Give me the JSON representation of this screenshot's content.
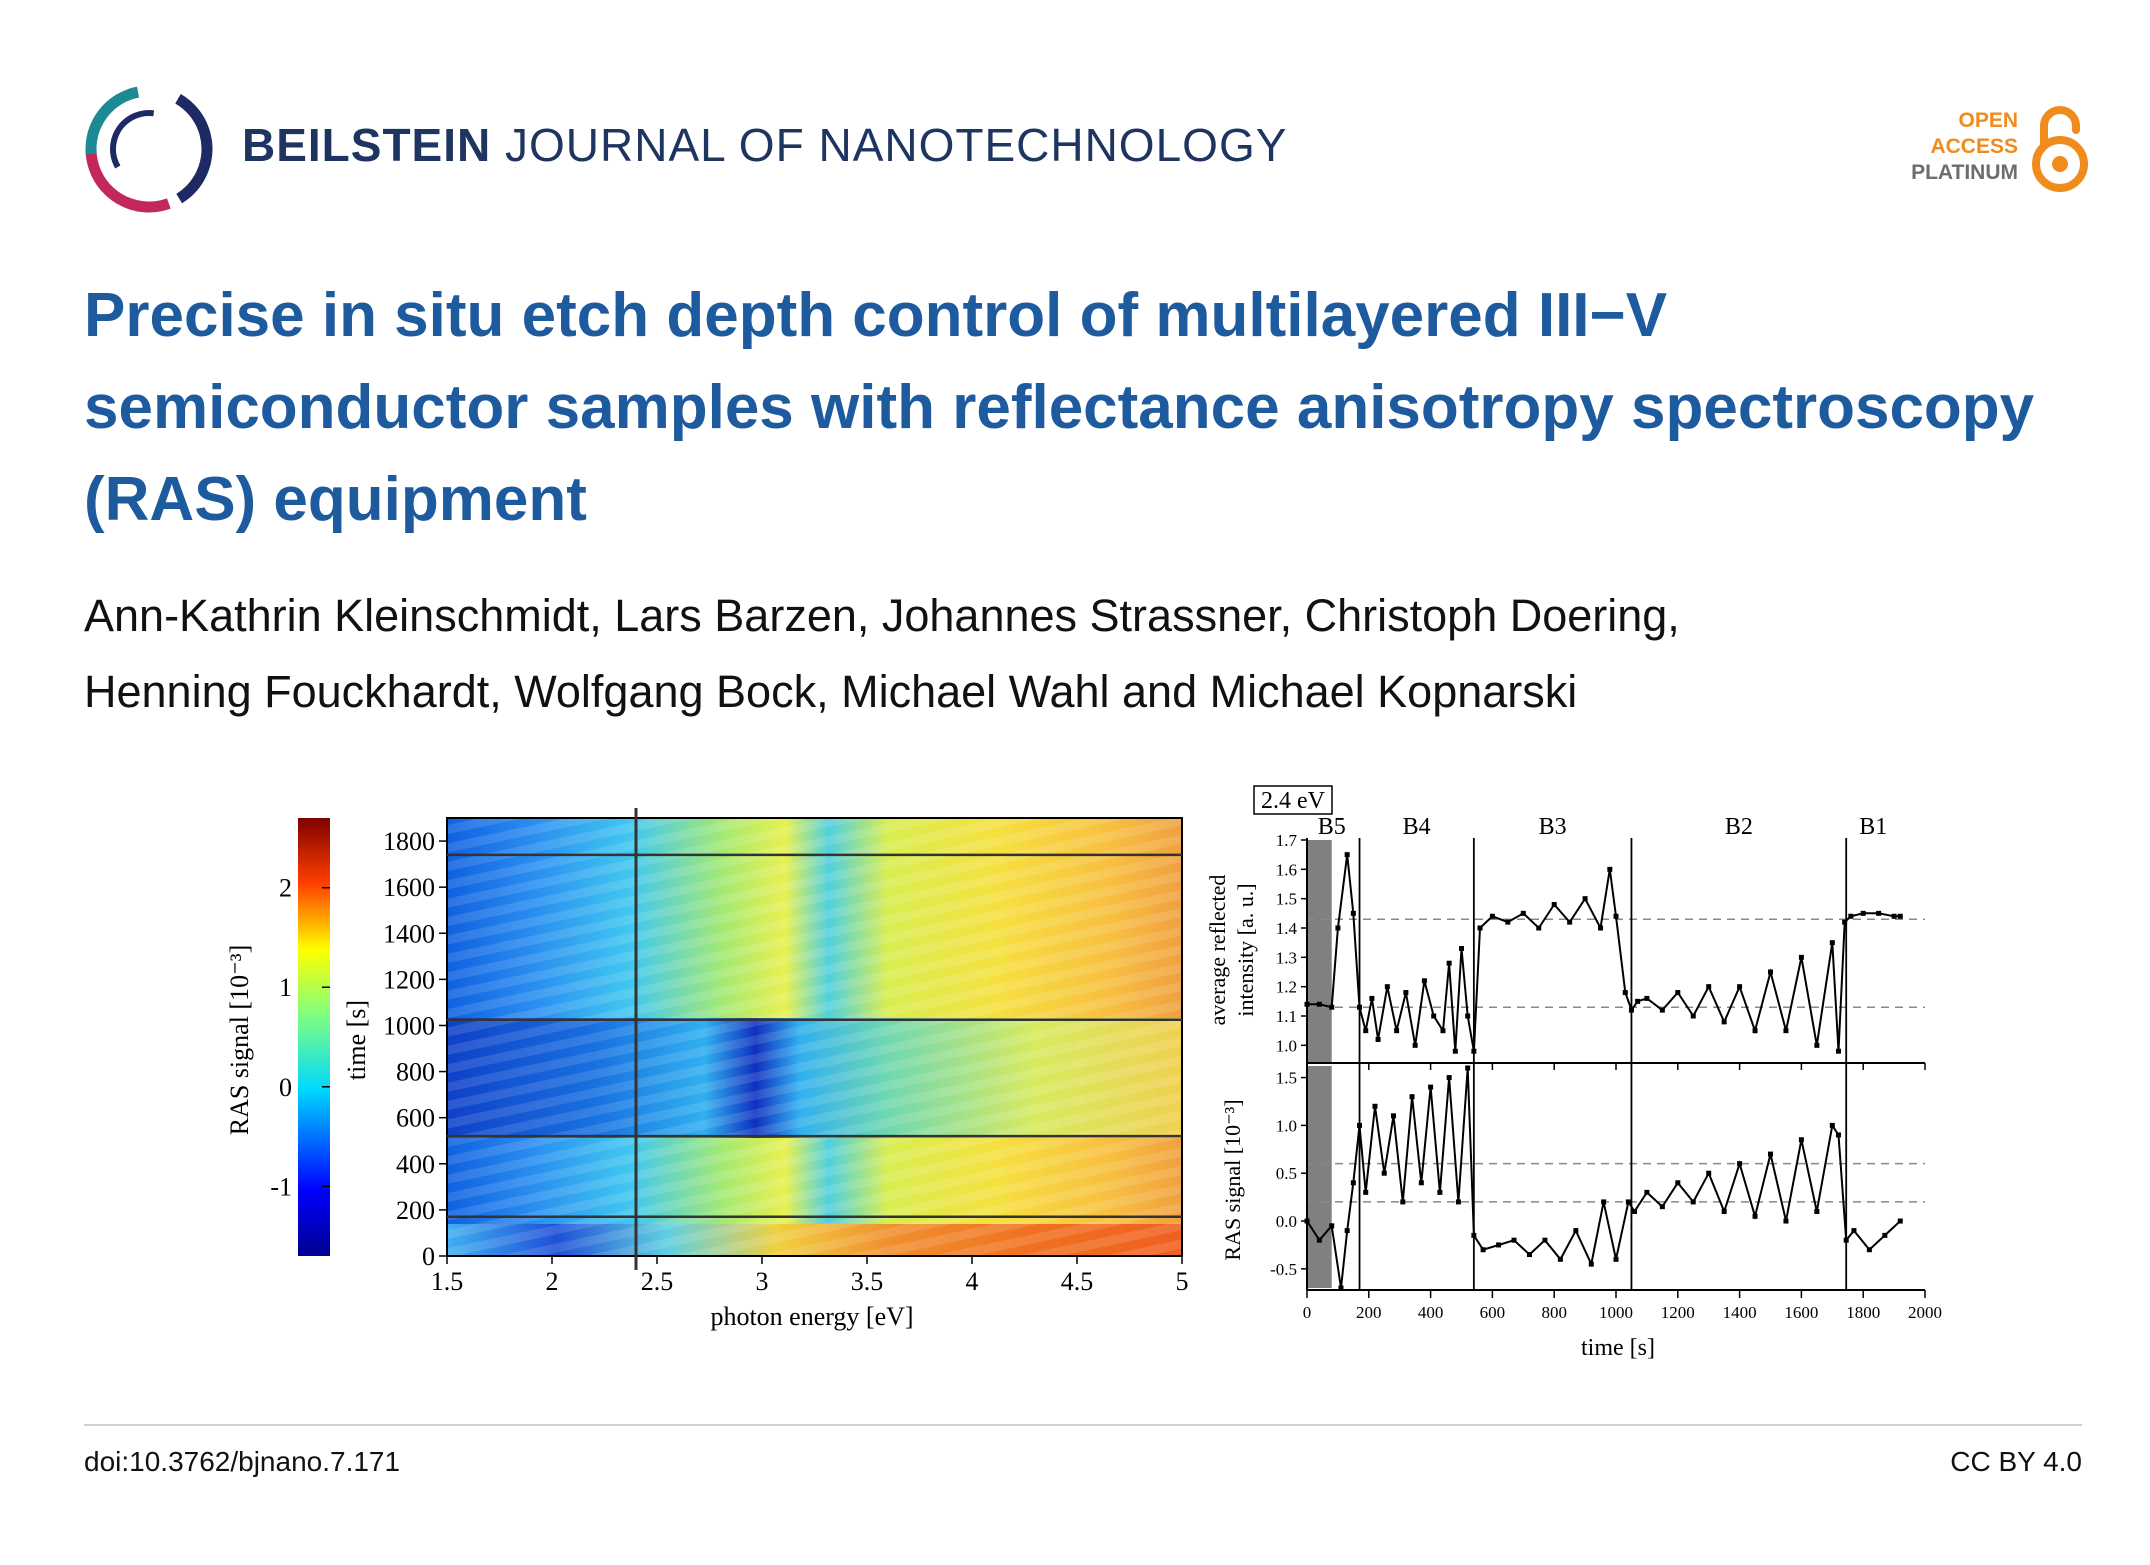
{
  "journal": {
    "name_bold": "BEILSTEIN",
    "name_rest": "JOURNAL OF NANOTECHNOLOGY"
  },
  "badge": {
    "line1": "OPEN",
    "line2": "ACCESS",
    "line3": "PLATINUM",
    "color": "#f08c1e"
  },
  "article": {
    "title": "Precise in situ etch depth control of multilayered III−V semiconductor samples with reflectance anisotropy spectroscopy (RAS) equipment",
    "authors_line1": "Ann-Kathrin Kleinschmidt, Lars Barzen, Johannes Strassner, Christoph Doering,",
    "authors_line2": "Henning Fouckhardt, Wolfgang Bock, Michael Wahl and Michael Kopnarski"
  },
  "footer": {
    "doi": "doi:10.3762/bjnano.7.171",
    "license": "CC BY 4.0"
  },
  "chart_data": [
    {
      "type": "heatmap",
      "xlabel": "photon energy [eV]",
      "ylabel": "time [s]",
      "colorbar_label": "RAS signal [10⁻³]",
      "xlim": [
        1.5,
        5
      ],
      "ylim": [
        0,
        1900
      ],
      "x_ticks": [
        "1.5",
        "2",
        "2.5",
        "3",
        "3.5",
        "4",
        "4.5",
        "5"
      ],
      "y_ticks": [
        "0",
        "200",
        "400",
        "600",
        "800",
        "1000",
        "1200",
        "1400",
        "1600",
        "1800"
      ],
      "colorbar_ticks": [
        "-1",
        "0",
        "1",
        "2"
      ],
      "colorbar_range": [
        -1.7,
        2.7
      ],
      "layer_boundaries_s": [
        170,
        520,
        1025,
        1740
      ],
      "marker_energy_eV": 2.4
    },
    {
      "type": "line",
      "annotation": "2.4 eV",
      "layers": [
        "B5",
        "B4",
        "B3",
        "B2",
        "B1"
      ],
      "layer_boundaries_s": [
        170,
        540,
        1050,
        1745
      ],
      "xlabel": "time [s]",
      "xlim": [
        0,
        2000
      ],
      "x_ticks": [
        "0",
        "200",
        "400",
        "600",
        "800",
        "1000",
        "1200",
        "1400",
        "1600",
        "1800",
        "2000"
      ],
      "top": {
        "ylabel_line1": "average reflected",
        "ylabel_line2": "intensity [a. u.]",
        "ylim": [
          0.95,
          1.7
        ],
        "y_ticks": [
          "1.0",
          "1.1",
          "1.2",
          "1.3",
          "1.4",
          "1.5",
          "1.6",
          "1.7"
        ],
        "ref_levels": [
          1.43,
          1.13
        ],
        "x": [
          0,
          40,
          80,
          100,
          130,
          150,
          170,
          190,
          210,
          230,
          260,
          290,
          320,
          350,
          380,
          410,
          440,
          460,
          480,
          500,
          520,
          540,
          560,
          600,
          650,
          700,
          750,
          800,
          850,
          900,
          950,
          980,
          1000,
          1030,
          1050,
          1070,
          1100,
          1150,
          1200,
          1250,
          1300,
          1350,
          1400,
          1450,
          1500,
          1550,
          1600,
          1650,
          1700,
          1720,
          1740,
          1760,
          1800,
          1850,
          1900,
          1920
        ],
        "y": [
          1.14,
          1.14,
          1.13,
          1.4,
          1.65,
          1.45,
          1.13,
          1.05,
          1.16,
          1.02,
          1.2,
          1.05,
          1.18,
          1.0,
          1.22,
          1.1,
          1.05,
          1.28,
          0.98,
          1.33,
          1.1,
          0.98,
          1.4,
          1.44,
          1.42,
          1.45,
          1.4,
          1.48,
          1.42,
          1.5,
          1.4,
          1.6,
          1.44,
          1.18,
          1.12,
          1.15,
          1.16,
          1.12,
          1.18,
          1.1,
          1.2,
          1.08,
          1.2,
          1.05,
          1.25,
          1.05,
          1.3,
          1.0,
          1.35,
          0.98,
          1.42,
          1.44,
          1.45,
          1.45,
          1.44,
          1.44
        ]
      },
      "bottom": {
        "ylabel": "RAS signal [10⁻³]",
        "ylim": [
          -0.7,
          1.6
        ],
        "y_ticks": [
          "-0.5",
          "0.0",
          "0.5",
          "1.0",
          "1.5"
        ],
        "ref_levels": [
          0.6,
          0.2
        ],
        "x": [
          0,
          40,
          80,
          110,
          130,
          150,
          170,
          190,
          220,
          250,
          280,
          310,
          340,
          370,
          400,
          430,
          460,
          490,
          520,
          540,
          570,
          620,
          670,
          720,
          770,
          820,
          870,
          920,
          960,
          1000,
          1040,
          1060,
          1100,
          1150,
          1200,
          1250,
          1300,
          1350,
          1400,
          1450,
          1500,
          1550,
          1600,
          1650,
          1700,
          1720,
          1745,
          1770,
          1820,
          1870,
          1920
        ],
        "y": [
          0.0,
          -0.2,
          -0.05,
          -0.7,
          -0.1,
          0.4,
          1.0,
          0.3,
          1.2,
          0.5,
          1.1,
          0.2,
          1.3,
          0.4,
          1.4,
          0.3,
          1.5,
          0.2,
          1.6,
          -0.15,
          -0.3,
          -0.25,
          -0.2,
          -0.35,
          -0.2,
          -0.4,
          -0.1,
          -0.45,
          0.2,
          -0.4,
          0.2,
          0.1,
          0.3,
          0.15,
          0.4,
          0.2,
          0.5,
          0.1,
          0.6,
          0.05,
          0.7,
          0.0,
          0.85,
          0.1,
          1.0,
          0.9,
          -0.2,
          -0.1,
          -0.3,
          -0.15,
          0.0
        ]
      }
    }
  ]
}
